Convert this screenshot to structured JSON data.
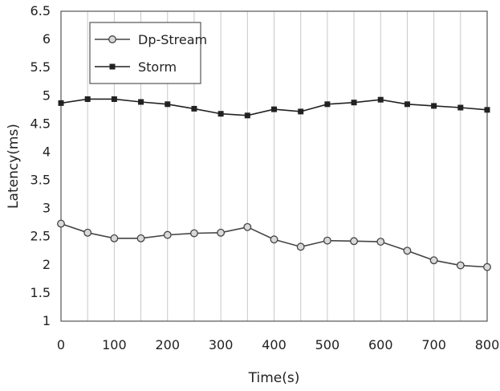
{
  "chart_data": {
    "type": "line",
    "title": "",
    "xlabel": "Time(s)",
    "ylabel": "Latency(ms)",
    "xlim": [
      0,
      800
    ],
    "ylim": [
      1,
      6.5
    ],
    "xticks": [
      0,
      100,
      200,
      300,
      400,
      500,
      600,
      700,
      800
    ],
    "yticks": [
      1,
      1.5,
      2,
      2.5,
      3,
      3.5,
      4,
      4.5,
      5,
      5.5,
      6,
      6.5
    ],
    "grid": "vertical",
    "legend_position": "top-left",
    "x": [
      0,
      50,
      100,
      150,
      200,
      250,
      300,
      350,
      400,
      450,
      500,
      550,
      600,
      650,
      700,
      750,
      800
    ],
    "series": [
      {
        "name": "Dp-Stream",
        "marker": "circle",
        "color": "#444444",
        "values": [
          2.73,
          2.57,
          2.47,
          2.47,
          2.53,
          2.56,
          2.57,
          2.67,
          2.45,
          2.32,
          2.43,
          2.42,
          2.41,
          2.25,
          2.08,
          1.99,
          1.96
        ]
      },
      {
        "name": "Storm",
        "marker": "square",
        "color": "#222222",
        "values": [
          4.87,
          4.94,
          4.94,
          4.89,
          4.85,
          4.77,
          4.68,
          4.65,
          4.76,
          4.72,
          4.85,
          4.88,
          4.93,
          4.85,
          4.82,
          4.79,
          4.75
        ]
      }
    ]
  }
}
